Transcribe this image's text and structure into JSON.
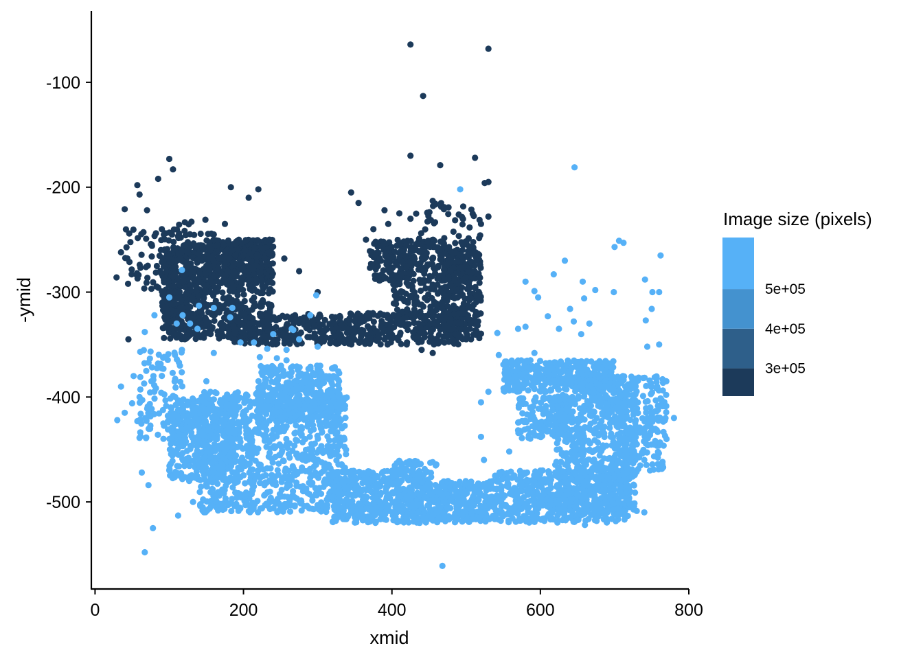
{
  "chart_data": {
    "type": "scatter",
    "title": "",
    "xlabel": "xmid",
    "ylabel": "-ymid",
    "xlim": [
      -5,
      800
    ],
    "ylim": [
      -583,
      -32
    ],
    "x_ticks": [
      0,
      200,
      400,
      600,
      800
    ],
    "y_ticks": [
      -100,
      -200,
      -300,
      -400,
      -500
    ],
    "x_tick_labels": [
      "0",
      "200",
      "400",
      "600",
      "800"
    ],
    "y_tick_labels": [
      "-100",
      "-200",
      "-300",
      "-400",
      "-500"
    ],
    "grid": false,
    "legend": {
      "title": "Image size (pixels)",
      "placement": "right",
      "type": "colorbar-binned",
      "range": [
        230000,
        630000
      ],
      "breaks": [
        300000,
        400000,
        500000
      ],
      "break_labels": [
        "3e+05",
        "4e+05",
        "5e+05"
      ],
      "colors": [
        "#1c3a5a",
        "#2e5f8a",
        "#4492cf",
        "#56b1f7"
      ]
    },
    "series": [
      {
        "image_size": 300000,
        "color": "#1c3a5a",
        "points": [
          [
            425,
            -64
          ],
          [
            530,
            -68
          ],
          [
            442,
            -113
          ],
          [
            425,
            -170
          ],
          [
            512,
            -172
          ],
          [
            465,
            -179
          ],
          [
            100,
            -173
          ],
          [
            105,
            -183
          ],
          [
            57,
            -198
          ],
          [
            60,
            -207
          ],
          [
            40,
            -221
          ],
          [
            70,
            -222
          ],
          [
            85,
            -192
          ],
          [
            183,
            -200
          ],
          [
            207,
            -210
          ],
          [
            220,
            -202
          ],
          [
            345,
            -205
          ],
          [
            355,
            -215
          ],
          [
            390,
            -222
          ],
          [
            410,
            -225
          ],
          [
            425,
            -230
          ],
          [
            455,
            -213
          ],
          [
            470,
            -221
          ],
          [
            490,
            -226
          ],
          [
            520,
            -235
          ],
          [
            525,
            -196
          ],
          [
            530,
            -195
          ],
          [
            530,
            -228
          ],
          [
            29,
            -286
          ],
          [
            35,
            -262
          ],
          [
            45,
            -345
          ],
          [
            90,
            -240
          ],
          [
            130,
            -280
          ],
          [
            140,
            -290
          ],
          [
            155,
            -300
          ],
          [
            152,
            -275
          ],
          [
            160,
            -245
          ],
          [
            175,
            -235
          ],
          [
            185,
            -260
          ],
          [
            200,
            -265
          ],
          [
            235,
            -250
          ],
          [
            470,
            -254
          ],
          [
            495,
            -260
          ],
          [
            503,
            -280
          ],
          [
            395,
            -235
          ],
          [
            375,
            -240
          ],
          [
            365,
            -250
          ],
          [
            378,
            -265
          ],
          [
            395,
            -278
          ],
          [
            410,
            -290
          ],
          [
            425,
            -305
          ],
          [
            440,
            -312
          ],
          [
            455,
            -320
          ],
          [
            470,
            -330
          ],
          [
            485,
            -340
          ],
          [
            500,
            -345
          ],
          [
            440,
            -355
          ],
          [
            455,
            -358
          ],
          [
            420,
            -350
          ],
          [
            390,
            -345
          ],
          [
            360,
            -340
          ],
          [
            330,
            -345
          ],
          [
            300,
            -345
          ],
          [
            270,
            -345
          ],
          [
            240,
            -340
          ],
          [
            210,
            -340
          ],
          [
            180,
            -335
          ],
          [
            150,
            -330
          ],
          [
            130,
            -325
          ],
          [
            115,
            -315
          ],
          [
            108,
            -300
          ],
          [
            105,
            -285
          ],
          [
            110,
            -270
          ],
          [
            125,
            -262
          ],
          [
            145,
            -258
          ],
          [
            165,
            -255
          ],
          [
            190,
            -252
          ],
          [
            215,
            -258
          ],
          [
            235,
            -262
          ],
          [
            255,
            -268
          ],
          [
            275,
            -280
          ],
          [
            300,
            -300
          ],
          [
            320,
            -330
          ],
          [
            340,
            -335
          ]
        ],
        "clusters": [
          {
            "x": [
              95,
              240
            ],
            "y": [
              -255,
              -345
            ],
            "n": 550
          },
          {
            "x": [
              150,
              240
            ],
            "y": [
              -250,
              -290
            ],
            "n": 260
          },
          {
            "x": [
              90,
              150
            ],
            "y": [
              -260,
              -345
            ],
            "n": 260
          },
          {
            "x": [
              180,
              500
            ],
            "y": [
              -320,
              -350
            ],
            "n": 520
          },
          {
            "x": [
              370,
              510
            ],
            "y": [
              -250,
              -290
            ],
            "n": 320
          },
          {
            "x": [
              470,
              520
            ],
            "y": [
              -260,
              -345
            ],
            "n": 260
          },
          {
            "x": [
              400,
              470
            ],
            "y": [
              -290,
              -325
            ],
            "n": 90
          },
          {
            "x": [
              40,
              110
            ],
            "y": [
              -240,
              -300
            ],
            "n": 70
          },
          {
            "x": [
              110,
              160
            ],
            "y": [
              -230,
              -270
            ],
            "n": 45
          },
          {
            "x": [
              430,
              520
            ],
            "y": [
              -215,
              -250
            ],
            "n": 35
          }
        ]
      },
      {
        "image_size": 560000,
        "color": "#56b1f7",
        "points": [
          [
            646,
            -181
          ],
          [
            492,
            -202
          ],
          [
            67,
            -548
          ],
          [
            468,
            -561
          ],
          [
            706,
            -251
          ],
          [
            712,
            -253
          ],
          [
            700,
            -257
          ],
          [
            762,
            -265
          ],
          [
            633,
            -270
          ],
          [
            618,
            -283
          ],
          [
            657,
            -290
          ],
          [
            674,
            -298
          ],
          [
            699,
            -300
          ],
          [
            741,
            -288
          ],
          [
            751,
            -300
          ],
          [
            750,
            -316
          ],
          [
            742,
            -327
          ],
          [
            744,
            -352
          ],
          [
            760,
            -350
          ],
          [
            760,
            -300
          ],
          [
            610,
            -323
          ],
          [
            625,
            -335
          ],
          [
            640,
            -316
          ],
          [
            580,
            -290
          ],
          [
            592,
            -299
          ],
          [
            597,
            -305
          ],
          [
            659,
            -306
          ],
          [
            666,
            -330
          ],
          [
            580,
            -333
          ],
          [
            530,
            -395
          ],
          [
            520,
            -405
          ],
          [
            520,
            -438
          ],
          [
            524,
            -460
          ],
          [
            539,
            -475
          ],
          [
            531,
            -500
          ],
          [
            535,
            -487
          ],
          [
            612,
            -481
          ],
          [
            624,
            -468
          ],
          [
            592,
            -480
          ],
          [
            558,
            -452
          ],
          [
            545,
            -472
          ],
          [
            552,
            -494
          ],
          [
            570,
            -335
          ],
          [
            544,
            -360
          ],
          [
            557,
            -381
          ],
          [
            542,
            -339
          ],
          [
            592,
            -358
          ],
          [
            645,
            -328
          ],
          [
            655,
            -340
          ],
          [
            35,
            -390
          ],
          [
            57,
            -423
          ],
          [
            60,
            -439
          ],
          [
            52,
            -380
          ],
          [
            61,
            -381
          ],
          [
            50,
            -406
          ],
          [
            30,
            -422
          ],
          [
            76,
            -385
          ],
          [
            60,
            -400
          ],
          [
            40,
            -415
          ],
          [
            63,
            -472
          ],
          [
            72,
            -484
          ],
          [
            78,
            -525
          ],
          [
            112,
            -513
          ],
          [
            132,
            -500
          ],
          [
            120,
            -437
          ],
          [
            104,
            -434
          ],
          [
            100,
            -470
          ],
          [
            108,
            -400
          ],
          [
            150,
            -385
          ],
          [
            160,
            -358
          ],
          [
            240,
            -340
          ],
          [
            265,
            -335
          ],
          [
            275,
            -345
          ],
          [
            290,
            -322
          ],
          [
            300,
            -352
          ],
          [
            258,
            -365
          ],
          [
            245,
            -363
          ],
          [
            232,
            -354
          ],
          [
            214,
            -348
          ],
          [
            196,
            -348
          ],
          [
            182,
            -324
          ],
          [
            160,
            -315
          ],
          [
            138,
            -335
          ],
          [
            128,
            -330
          ],
          [
            110,
            -330
          ],
          [
            100,
            -305
          ],
          [
            80,
            -322
          ],
          [
            67,
            -338
          ],
          [
            118,
            -322
          ],
          [
            140,
            -313
          ],
          [
            185,
            -315
          ],
          [
            222,
            -362
          ],
          [
            298,
            -303
          ],
          [
            258,
            -355
          ],
          [
            267,
            -336
          ],
          [
            117,
            -279
          ],
          [
            117,
            -355
          ],
          [
            420,
            -495
          ],
          [
            460,
            -510
          ],
          [
            500,
            -517
          ],
          [
            640,
            -508
          ],
          [
            660,
            -522
          ],
          [
            740,
            -510
          ],
          [
            770,
            -440
          ],
          [
            780,
            -420
          ],
          [
            740,
            -460
          ],
          [
            717,
            -472
          ],
          [
            730,
            -445
          ],
          [
            707,
            -425
          ]
        ],
        "clusters": [
          {
            "x": [
              140,
              340
            ],
            "y": [
              -395,
              -510
            ],
            "n": 900
          },
          {
            "x": [
              100,
              190
            ],
            "y": [
              -400,
              -480
            ],
            "n": 420
          },
          {
            "x": [
              220,
              330
            ],
            "y": [
              -370,
              -420
            ],
            "n": 380
          },
          {
            "x": [
              320,
              440
            ],
            "y": [
              -470,
              -520
            ],
            "n": 420
          },
          {
            "x": [
              440,
              540
            ],
            "y": [
              -480,
              -520
            ],
            "n": 320
          },
          {
            "x": [
              540,
              720
            ],
            "y": [
              -470,
              -520
            ],
            "n": 520
          },
          {
            "x": [
              620,
              730
            ],
            "y": [
              -380,
              -510
            ],
            "n": 640
          },
          {
            "x": [
              550,
              700
            ],
            "y": [
              -365,
              -395
            ],
            "n": 360
          },
          {
            "x": [
              570,
              640
            ],
            "y": [
              -400,
              -440
            ],
            "n": 160
          },
          {
            "x": [
              700,
              770
            ],
            "y": [
              -380,
              -470
            ],
            "n": 210
          },
          {
            "x": [
              60,
              120
            ],
            "y": [
              -350,
              -440
            ],
            "n": 90
          },
          {
            "x": [
              400,
              460
            ],
            "y": [
              -460,
              -500
            ],
            "n": 90
          }
        ]
      }
    ]
  }
}
